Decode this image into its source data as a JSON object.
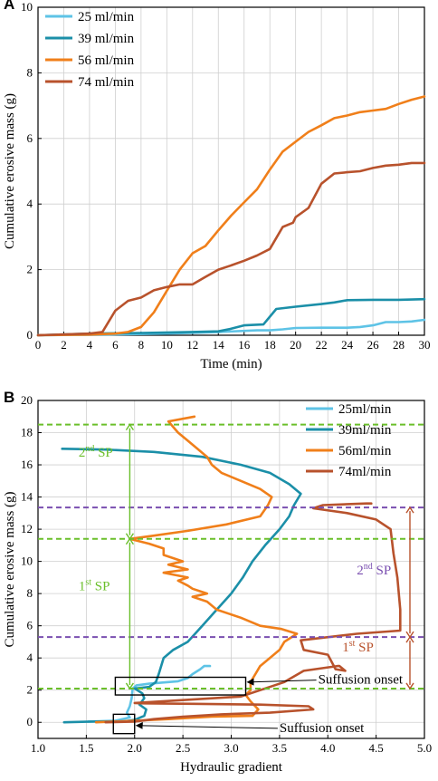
{
  "chart_data": [
    {
      "panel": "A",
      "type": "line",
      "xlabel": "Time (min)",
      "ylabel": "Cumulative erosive mass (g)",
      "xlim": [
        0,
        30
      ],
      "ylim": [
        0,
        10
      ],
      "xticks": [
        "0",
        "2",
        "4",
        "6",
        "8",
        "10",
        "12",
        "14",
        "16",
        "18",
        "20",
        "22",
        "24",
        "26",
        "28",
        "30"
      ],
      "yticks": [
        "0",
        "2",
        "4",
        "6",
        "8",
        "10"
      ],
      "grid": true,
      "legend_position": "top-left",
      "series": [
        {
          "name": "25 ml/min",
          "color": "#5ec3e6",
          "points": [
            [
              0,
              0
            ],
            [
              5,
              0.02
            ],
            [
              10,
              0.05
            ],
            [
              14,
              0.1
            ],
            [
              17,
              0.15
            ],
            [
              18,
              0.15
            ],
            [
              19,
              0.18
            ],
            [
              20,
              0.22
            ],
            [
              22,
              0.23
            ],
            [
              24,
              0.23
            ],
            [
              25,
              0.25
            ],
            [
              26,
              0.3
            ],
            [
              27,
              0.4
            ],
            [
              28,
              0.4
            ],
            [
              29,
              0.42
            ],
            [
              30,
              0.47
            ]
          ]
        },
        {
          "name": "39 ml/min",
          "color": "#1b8fa8",
          "points": [
            [
              0,
              0
            ],
            [
              4,
              0.05
            ],
            [
              8,
              0.07
            ],
            [
              12,
              0.1
            ],
            [
              14,
              0.12
            ],
            [
              15,
              0.2
            ],
            [
              16,
              0.3
            ],
            [
              17.5,
              0.33
            ],
            [
              18.5,
              0.8
            ],
            [
              20,
              0.87
            ],
            [
              22,
              0.95
            ],
            [
              23,
              1.0
            ],
            [
              24,
              1.07
            ],
            [
              26,
              1.08
            ],
            [
              28,
              1.08
            ],
            [
              30,
              1.1
            ]
          ]
        },
        {
          "name": "56 ml/min",
          "color": "#f07f1a",
          "points": [
            [
              0,
              0
            ],
            [
              4,
              0.02
            ],
            [
              6,
              0.05
            ],
            [
              7,
              0.1
            ],
            [
              8,
              0.25
            ],
            [
              9,
              0.7
            ],
            [
              10,
              1.35
            ],
            [
              11,
              2.0
            ],
            [
              12,
              2.5
            ],
            [
              13,
              2.72
            ],
            [
              14,
              3.2
            ],
            [
              15,
              3.65
            ],
            [
              16,
              4.05
            ],
            [
              17,
              4.45
            ],
            [
              18,
              5.05
            ],
            [
              19,
              5.6
            ],
            [
              20,
              5.9
            ],
            [
              21,
              6.2
            ],
            [
              22,
              6.4
            ],
            [
              23,
              6.62
            ],
            [
              24,
              6.7
            ],
            [
              25,
              6.8
            ],
            [
              26,
              6.85
            ],
            [
              27,
              6.9
            ],
            [
              28,
              7.05
            ],
            [
              29,
              7.18
            ],
            [
              30,
              7.28
            ]
          ]
        },
        {
          "name": "74 ml/min",
          "color": "#b8522c",
          "points": [
            [
              0,
              0
            ],
            [
              4,
              0.05
            ],
            [
              5,
              0.1
            ],
            [
              6,
              0.75
            ],
            [
              7,
              1.05
            ],
            [
              8,
              1.15
            ],
            [
              9,
              1.37
            ],
            [
              10,
              1.47
            ],
            [
              11,
              1.55
            ],
            [
              12,
              1.55
            ],
            [
              13,
              1.78
            ],
            [
              14,
              2.0
            ],
            [
              15,
              2.13
            ],
            [
              16,
              2.27
            ],
            [
              17,
              2.43
            ],
            [
              18,
              2.63
            ],
            [
              19,
              3.3
            ],
            [
              19.8,
              3.43
            ],
            [
              20,
              3.6
            ],
            [
              21,
              3.88
            ],
            [
              22,
              4.62
            ],
            [
              23,
              4.93
            ],
            [
              24,
              4.97
            ],
            [
              25,
              5.0
            ],
            [
              26,
              5.1
            ],
            [
              27,
              5.17
            ],
            [
              28,
              5.2
            ],
            [
              29,
              5.25
            ],
            [
              30,
              5.25
            ]
          ]
        }
      ]
    },
    {
      "panel": "B",
      "type": "line",
      "xlabel": "Hydraulic gradient",
      "ylabel": "Cumulative erosive mass (g)",
      "xlim": [
        1.0,
        5.0
      ],
      "ylim": [
        -1,
        20
      ],
      "xticks": [
        "1.0",
        "1.5",
        "2.0",
        "2.5",
        "3.0",
        "3.5",
        "4.0",
        "4.5",
        "5.0"
      ],
      "yticks": [
        "0",
        "2",
        "4",
        "6",
        "8",
        "10",
        "12",
        "14",
        "16",
        "18",
        "20"
      ],
      "grid": true,
      "legend_position": "top-right",
      "series": [
        {
          "name": "25ml/min",
          "color": "#5ec3e6",
          "points": [
            [
              1.52,
              0.05
            ],
            [
              1.8,
              0.1
            ],
            [
              1.95,
              0.3
            ],
            [
              1.92,
              0.6
            ],
            [
              1.95,
              1.0
            ],
            [
              1.97,
              1.5
            ],
            [
              1.98,
              2.1
            ],
            [
              2.02,
              2.3
            ],
            [
              2.15,
              2.4
            ],
            [
              2.45,
              2.55
            ],
            [
              2.55,
              2.75
            ],
            [
              2.6,
              3.0
            ],
            [
              2.68,
              3.3
            ],
            [
              2.72,
              3.5
            ],
            [
              2.78,
              3.5
            ]
          ]
        },
        {
          "name": "39ml/min",
          "color": "#1b8fa8",
          "points": [
            [
              1.27,
              0.0
            ],
            [
              1.55,
              0.05
            ],
            [
              1.9,
              0.07
            ],
            [
              2.0,
              0.15
            ],
            [
              2.1,
              0.4
            ],
            [
              2.12,
              0.8
            ],
            [
              2.05,
              1.1
            ],
            [
              2.1,
              1.5
            ],
            [
              2.08,
              1.8
            ],
            [
              2.0,
              2.1
            ],
            [
              2.15,
              2.2
            ],
            [
              2.22,
              2.5
            ],
            [
              2.25,
              3.0
            ],
            [
              2.3,
              4.0
            ],
            [
              2.4,
              4.5
            ],
            [
              2.55,
              5.0
            ],
            [
              2.7,
              6.0
            ],
            [
              2.85,
              7.0
            ],
            [
              3.0,
              8.0
            ],
            [
              3.12,
              9.0
            ],
            [
              3.22,
              10.0
            ],
            [
              3.35,
              11.0
            ],
            [
              3.5,
              12.0
            ],
            [
              3.6,
              12.8
            ],
            [
              3.65,
              13.5
            ],
            [
              3.72,
              14.2
            ],
            [
              3.6,
              14.8
            ],
            [
              3.4,
              15.5
            ],
            [
              3.1,
              16.0
            ],
            [
              2.7,
              16.5
            ],
            [
              2.2,
              16.8
            ],
            [
              1.7,
              16.95
            ],
            [
              1.25,
              17.0
            ]
          ]
        },
        {
          "name": "56ml/min",
          "color": "#f07f1a",
          "points": [
            [
              1.6,
              0.0
            ],
            [
              2.0,
              0.1
            ],
            [
              2.35,
              0.2
            ],
            [
              2.8,
              0.35
            ],
            [
              3.22,
              0.4
            ],
            [
              3.28,
              0.8
            ],
            [
              3.2,
              1.3
            ],
            [
              3.15,
              1.7
            ],
            [
              3.2,
              2.0
            ],
            [
              3.2,
              2.5
            ],
            [
              3.25,
              3.0
            ],
            [
              3.3,
              3.5
            ],
            [
              3.4,
              4.0
            ],
            [
              3.5,
              4.5
            ],
            [
              3.55,
              5.0
            ],
            [
              3.68,
              5.5
            ],
            [
              3.52,
              5.8
            ],
            [
              3.3,
              6.0
            ],
            [
              3.1,
              6.5
            ],
            [
              2.85,
              7.0
            ],
            [
              2.75,
              7.5
            ],
            [
              2.6,
              7.8
            ],
            [
              2.75,
              8.0
            ],
            [
              2.6,
              8.3
            ],
            [
              2.55,
              8.5
            ],
            [
              2.45,
              8.8
            ],
            [
              2.55,
              9.0
            ],
            [
              2.3,
              9.3
            ],
            [
              2.55,
              9.5
            ],
            [
              2.35,
              9.8
            ],
            [
              2.5,
              10.0
            ],
            [
              2.3,
              10.4
            ],
            [
              2.3,
              10.8
            ],
            [
              2.15,
              11.1
            ],
            [
              1.95,
              11.4
            ],
            [
              2.2,
              11.6
            ],
            [
              2.55,
              11.9
            ],
            [
              2.95,
              12.3
            ],
            [
              3.3,
              12.8
            ],
            [
              3.38,
              13.5
            ],
            [
              3.42,
              14.0
            ],
            [
              3.3,
              14.5
            ],
            [
              3.1,
              15.0
            ],
            [
              2.9,
              15.5
            ],
            [
              2.8,
              16.0
            ],
            [
              2.75,
              16.5
            ],
            [
              2.65,
              17.0
            ],
            [
              2.55,
              17.5
            ],
            [
              2.45,
              18.0
            ],
            [
              2.35,
              18.7
            ],
            [
              2.62,
              19.0
            ]
          ]
        },
        {
          "name": "74ml/min",
          "color": "#b8522c",
          "points": [
            [
              1.7,
              0.0
            ],
            [
              2.0,
              0.05
            ],
            [
              2.2,
              0.2
            ],
            [
              2.5,
              0.35
            ],
            [
              2.9,
              0.5
            ],
            [
              3.4,
              0.6
            ],
            [
              3.85,
              0.8
            ],
            [
              3.8,
              1.0
            ],
            [
              3.3,
              1.1
            ],
            [
              2.6,
              1.15
            ],
            [
              2.1,
              1.18
            ],
            [
              2.0,
              1.2
            ],
            [
              3.1,
              1.6
            ],
            [
              3.55,
              2.5
            ],
            [
              3.75,
              3.2
            ],
            [
              4.1,
              3.5
            ],
            [
              4.12,
              3.5
            ],
            [
              4.18,
              3.2
            ],
            [
              4.08,
              3.3
            ],
            [
              4.0,
              4.2
            ],
            [
              3.75,
              4.5
            ],
            [
              3.72,
              5.1
            ],
            [
              4.3,
              5.5
            ],
            [
              4.75,
              5.7
            ],
            [
              4.75,
              7.0
            ],
            [
              4.72,
              9.0
            ],
            [
              4.68,
              10.5
            ],
            [
              4.65,
              12.0
            ],
            [
              4.5,
              12.6
            ],
            [
              4.2,
              13.0
            ],
            [
              3.85,
              13.3
            ],
            [
              3.95,
              13.5
            ],
            [
              4.4,
              13.6
            ],
            [
              4.45,
              13.6
            ]
          ]
        }
      ],
      "hlines": [
        {
          "y": 18.5,
          "color": "#6abf2a"
        },
        {
          "y": 13.35,
          "color": "#7a4fb0"
        },
        {
          "y": 11.4,
          "color": "#6abf2a"
        },
        {
          "y": 5.3,
          "color": "#7a4fb0"
        },
        {
          "y": 2.1,
          "color": "#6abf2a"
        }
      ],
      "boxes": [
        {
          "x": [
            1.8,
            3.15
          ],
          "y": [
            1.7,
            2.8
          ]
        },
        {
          "x": [
            1.78,
            2.0
          ],
          "y": [
            -0.7,
            0.5
          ]
        }
      ],
      "annotations": [
        {
          "text": "Suffusion onset",
          "at": [
            3.9,
            2.4
          ],
          "arrow_to": [
            3.15,
            2.5
          ]
        },
        {
          "text": "Suffusion onset",
          "at": [
            3.5,
            -0.6
          ],
          "arrow_to": [
            2.0,
            -0.2
          ]
        }
      ],
      "sp_labels": [
        {
          "base": "2",
          "sup": "nd",
          "tail": " SP",
          "color": "#6abf2a",
          "at": [
            1.42,
            16.5
          ]
        },
        {
          "base": "1",
          "sup": "st",
          "tail": " SP",
          "color": "#6abf2a",
          "at": [
            1.42,
            8.2
          ]
        },
        {
          "base": "2",
          "sup": "nd",
          "tail": " SP",
          "color": "#7a4fb0",
          "at": [
            4.3,
            9.2
          ]
        },
        {
          "base": "1",
          "sup": "st",
          "tail": " SP",
          "color": "#b8522c",
          "at": [
            4.15,
            4.4
          ]
        }
      ],
      "sp_arrows": [
        {
          "x": 1.95,
          "y1": 2.1,
          "y2": 11.4,
          "color": "#6abf2a"
        },
        {
          "x": 1.95,
          "y1": 11.4,
          "y2": 18.5,
          "color": "#6abf2a"
        },
        {
          "x": 4.85,
          "y1": 5.3,
          "y2": 13.35,
          "color": "#b8522c"
        },
        {
          "x": 4.85,
          "y1": 2.1,
          "y2": 5.3,
          "color": "#b8522c"
        }
      ]
    }
  ]
}
